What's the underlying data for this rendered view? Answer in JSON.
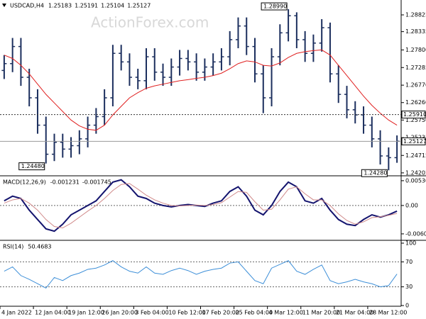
{
  "chart_data": [
    {
      "type": "ohlc",
      "title": "USDCAD,H4",
      "readout": [
        1.25183,
        1.25191,
        1.25104,
        1.25127
      ],
      "watermark": "ActionForex.com",
      "color": "#1c2f5e",
      "categories": [
        "4 Jan 2022",
        null,
        null,
        null,
        "12 Jan 04:00",
        null,
        null,
        null,
        "19 Jan 12:00",
        null,
        null,
        null,
        "26 Jan 20:00",
        null,
        null,
        null,
        "3 Feb 04:00",
        null,
        null,
        null,
        "10 Feb 12:00",
        null,
        null,
        null,
        "17 Feb 20:00",
        null,
        null,
        null,
        "25 Feb 04:00",
        null,
        null,
        null,
        "4 Mar 12:00",
        null,
        null,
        null,
        "11 Mar 20:00",
        null,
        null,
        null,
        "21 Mar 04:00",
        null,
        null,
        null,
        "28 Mar 12:00",
        null,
        null,
        null
      ],
      "open": [
        1.272,
        1.274,
        1.279,
        1.27,
        1.264,
        1.256,
        1.2475,
        1.251,
        1.249,
        1.25,
        1.252,
        1.256,
        1.2585,
        1.264,
        1.277,
        1.2745,
        1.27,
        1.269,
        1.276,
        1.2715,
        1.27,
        1.273,
        1.2755,
        1.2745,
        1.2715,
        1.273,
        1.2745,
        1.276,
        1.281,
        1.285,
        1.279,
        1.271,
        1.264,
        1.276,
        1.283,
        1.288,
        1.281,
        1.277,
        1.28,
        1.2845,
        1.271,
        1.265,
        1.2605,
        1.259,
        1.256,
        1.252,
        1.247,
        1.2465
      ],
      "high": [
        1.2765,
        1.2815,
        1.2815,
        1.2725,
        1.2665,
        1.2585,
        1.2535,
        1.2535,
        1.2525,
        1.2545,
        1.2585,
        1.261,
        1.2665,
        1.2795,
        1.2795,
        1.277,
        1.2725,
        1.2785,
        1.2785,
        1.274,
        1.2755,
        1.278,
        1.278,
        1.277,
        1.2755,
        1.277,
        1.2785,
        1.2835,
        1.2875,
        1.2875,
        1.2815,
        1.2735,
        1.2785,
        1.2855,
        1.2899,
        1.289,
        1.2835,
        1.2825,
        1.287,
        1.286,
        1.2735,
        1.2675,
        1.263,
        1.2615,
        1.2585,
        1.2545,
        1.2495,
        1.253
      ],
      "low": [
        1.2695,
        1.2715,
        1.2675,
        1.2615,
        1.2535,
        1.2448,
        1.2455,
        1.2465,
        1.2465,
        1.2475,
        1.2495,
        1.2535,
        1.256,
        1.2615,
        1.272,
        1.2675,
        1.2665,
        1.2665,
        1.269,
        1.2675,
        1.2675,
        1.2705,
        1.272,
        1.269,
        1.269,
        1.2705,
        1.272,
        1.2735,
        1.2785,
        1.2765,
        1.2685,
        1.2595,
        1.2615,
        1.2735,
        1.2805,
        1.2785,
        1.2745,
        1.2745,
        1.2775,
        1.2685,
        1.2625,
        1.258,
        1.2565,
        1.2535,
        1.2495,
        1.2445,
        1.2428,
        1.245
      ],
      "close": [
        1.274,
        1.279,
        1.27,
        1.264,
        1.256,
        1.2475,
        1.251,
        1.249,
        1.25,
        1.252,
        1.256,
        1.2585,
        1.264,
        1.277,
        1.2745,
        1.27,
        1.269,
        1.276,
        1.2715,
        1.27,
        1.273,
        1.2755,
        1.2745,
        1.2715,
        1.273,
        1.2745,
        1.276,
        1.281,
        1.285,
        1.279,
        1.271,
        1.264,
        1.276,
        1.283,
        1.288,
        1.281,
        1.277,
        1.28,
        1.2845,
        1.271,
        1.265,
        1.2605,
        1.259,
        1.256,
        1.252,
        1.247,
        1.2465,
        1.2513
      ],
      "overlay": {
        "color": "#e02020",
        "values": [
          1.2765,
          1.2755,
          1.2735,
          1.271,
          1.268,
          1.265,
          1.2625,
          1.26,
          1.2575,
          1.2558,
          1.2548,
          1.2545,
          1.256,
          1.259,
          1.2615,
          1.264,
          1.2655,
          1.2668,
          1.2675,
          1.268,
          1.2685,
          1.269,
          1.2693,
          1.2697,
          1.27,
          1.2705,
          1.2712,
          1.2725,
          1.274,
          1.2748,
          1.2745,
          1.2735,
          1.2733,
          1.2742,
          1.2758,
          1.277,
          1.2775,
          1.2778,
          1.278,
          1.2765,
          1.2735,
          1.2705,
          1.2675,
          1.2645,
          1.2618,
          1.2595,
          1.2575,
          1.256
        ]
      },
      "levels": [
        {
          "value": 1.2591,
          "label": "1.25910",
          "style": "dotted"
        },
        {
          "value": 1.25127,
          "style": "solid"
        }
      ],
      "annotations": [
        {
          "value": 1.2899,
          "label": "1.28990"
        },
        {
          "value": 1.2448,
          "label": "1.24480"
        },
        {
          "value": 1.2428,
          "label": "1.24280"
        }
      ],
      "ylim": [
        1.2414,
        1.2926
      ],
      "yticks": [
        1.28825,
        1.28335,
        {
          "value": 1.278,
          "label": "1.27800"
        },
        1.27285,
        {
          "value": 1.2677,
          "label": "1.26770"
        },
        {
          "value": 1.2626,
          "label": "1.26260"
        },
        {
          "value": 1.2575,
          "label": "1.25750"
        },
        1.25235,
        1.24715,
        1.24205
      ]
    },
    {
      "type": "line",
      "title": "MACD(12,26,9)",
      "readout": [
        -0.001231,
        -0.001745
      ],
      "series": [
        {
          "color": "#14146e",
          "width": 2,
          "values": [
            0.001,
            0.002,
            0.0015,
            -0.001,
            -0.003,
            -0.005,
            -0.0055,
            -0.004,
            -0.002,
            -0.001,
            0,
            0.001,
            0.003,
            0.005,
            0.0055,
            0.004,
            0.002,
            0.0015,
            0.0005,
            0,
            -0.0003,
            0,
            0.0002,
            0,
            -0.0002,
            0.0005,
            0.001,
            0.003,
            0.004,
            0.002,
            -0.001,
            -0.002,
            0,
            0.003,
            0.005,
            0.004,
            0.001,
            0.0005,
            0.0015,
            -0.001,
            -0.003,
            -0.004,
            -0.0043,
            -0.003,
            -0.002,
            -0.0025,
            -0.002,
            -0.0012
          ]
        },
        {
          "color": "#d08a8a",
          "width": 1,
          "values": [
            0.0005,
            0.0012,
            0.0015,
            0.0005,
            -0.001,
            -0.003,
            -0.0045,
            -0.0048,
            -0.0038,
            -0.0025,
            -0.0012,
            0,
            0.0015,
            0.0032,
            0.0045,
            0.0047,
            0.0035,
            0.0022,
            0.0012,
            0.0005,
            0,
            -0.0001,
            0,
            0.0001,
            0,
            0.0002,
            0.0006,
            0.0018,
            0.003,
            0.0028,
            0.0008,
            -0.001,
            -0.0008,
            0.0012,
            0.0035,
            0.004,
            0.0025,
            0.0012,
            0.0012,
            0,
            -0.0018,
            -0.0032,
            -0.004,
            -0.0035,
            -0.0026,
            -0.0024,
            -0.0021,
            -0.0017
          ]
        }
      ],
      "levels": [
        0
      ],
      "ylim": [
        -0.0073,
        0.0062
      ],
      "yticks": [
        0.005307,
        {
          "value": 0,
          "label": "0.00"
        },
        -0.006074
      ]
    },
    {
      "type": "line",
      "title": "RSI(14)",
      "readout": [
        50.4683
      ],
      "series": [
        {
          "color": "#3d8fd8",
          "width": 1,
          "values": [
            55,
            62,
            48,
            42,
            35,
            28,
            45,
            40,
            48,
            52,
            58,
            60,
            65,
            72,
            62,
            55,
            52,
            62,
            52,
            50,
            56,
            60,
            56,
            50,
            55,
            58,
            60,
            68,
            70,
            55,
            40,
            35,
            60,
            66,
            72,
            55,
            50,
            58,
            65,
            40,
            35,
            38,
            42,
            38,
            35,
            30,
            32,
            50.4683
          ]
        }
      ],
      "levels": [
        70,
        30
      ],
      "ylim": [
        -1.1,
        103.4
      ],
      "yticks": [
        100,
        70,
        30,
        0
      ]
    }
  ]
}
